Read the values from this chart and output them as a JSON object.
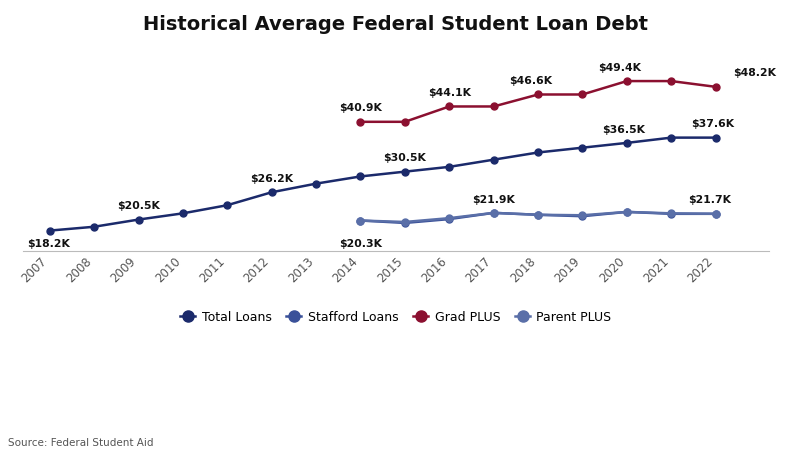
{
  "title": "Historical Average Federal Student Loan Debt",
  "source": "Source: Federal Student Aid",
  "total_loans_x": [
    2007,
    2008,
    2009,
    2010,
    2011,
    2012,
    2013,
    2014,
    2015,
    2016,
    2017,
    2018,
    2019,
    2020,
    2021,
    2022
  ],
  "total_loans_y": [
    18200,
    19000,
    20500,
    21800,
    23500,
    26200,
    28000,
    29500,
    30500,
    31500,
    33000,
    34500,
    35500,
    36500,
    37600,
    37600
  ],
  "stafford_x": [
    2014,
    2015,
    2016,
    2017,
    2018,
    2019,
    2020,
    2021,
    2022
  ],
  "stafford_y": [
    20300,
    19800,
    20600,
    21900,
    21500,
    21200,
    22100,
    21700,
    21700
  ],
  "grad_plus_x": [
    2014,
    2015,
    2016,
    2017,
    2018,
    2019,
    2020,
    2021,
    2022
  ],
  "grad_plus_y": [
    40900,
    40900,
    44100,
    44100,
    46600,
    46600,
    49400,
    49400,
    48200
  ],
  "parent_plus_x": [
    2014,
    2015,
    2016,
    2017,
    2018,
    2019,
    2020,
    2021,
    2022
  ],
  "parent_plus_y": [
    20300,
    20000,
    20800,
    21900,
    21500,
    21400,
    22100,
    21800,
    21700
  ],
  "color_total": "#1b2a6b",
  "color_stafford": "#3a5199",
  "color_grad": "#8b1030",
  "color_parent": "#5a6fa8",
  "label_total": "Total Loans",
  "label_stafford": "Stafford Loans",
  "label_grad": "Grad PLUS",
  "label_parent": "Parent PLUS",
  "annot_total": [
    [
      2007,
      "$18.2K",
      -1,
      -13
    ],
    [
      2009,
      "$20.5K",
      0,
      6
    ],
    [
      2012,
      "$26.2K",
      0,
      6
    ],
    [
      2015,
      "$30.5K",
      0,
      6
    ],
    [
      2020,
      "$36.5K",
      -2,
      6
    ],
    [
      2021,
      "$37.6K",
      30,
      6
    ]
  ],
  "annot_stafford": [
    [
      2014,
      "$20.3K",
      0,
      -13
    ],
    [
      2017,
      "$21.9K",
      0,
      6
    ],
    [
      2021,
      "$21.7K",
      28,
      6
    ]
  ],
  "annot_grad": [
    [
      2014,
      "$40.9K",
      0,
      6
    ],
    [
      2016,
      "$44.1K",
      0,
      6
    ],
    [
      2018,
      "$46.6K",
      -5,
      6
    ],
    [
      2020,
      "$49.4K",
      -5,
      6
    ],
    [
      2022,
      "$48.2K",
      28,
      6
    ]
  ],
  "bg_color": "#ffffff",
  "marker_size": 5,
  "linewidth": 1.8,
  "xlim": [
    2006.4,
    2023.2
  ],
  "ylim": [
    14000,
    56000
  ]
}
